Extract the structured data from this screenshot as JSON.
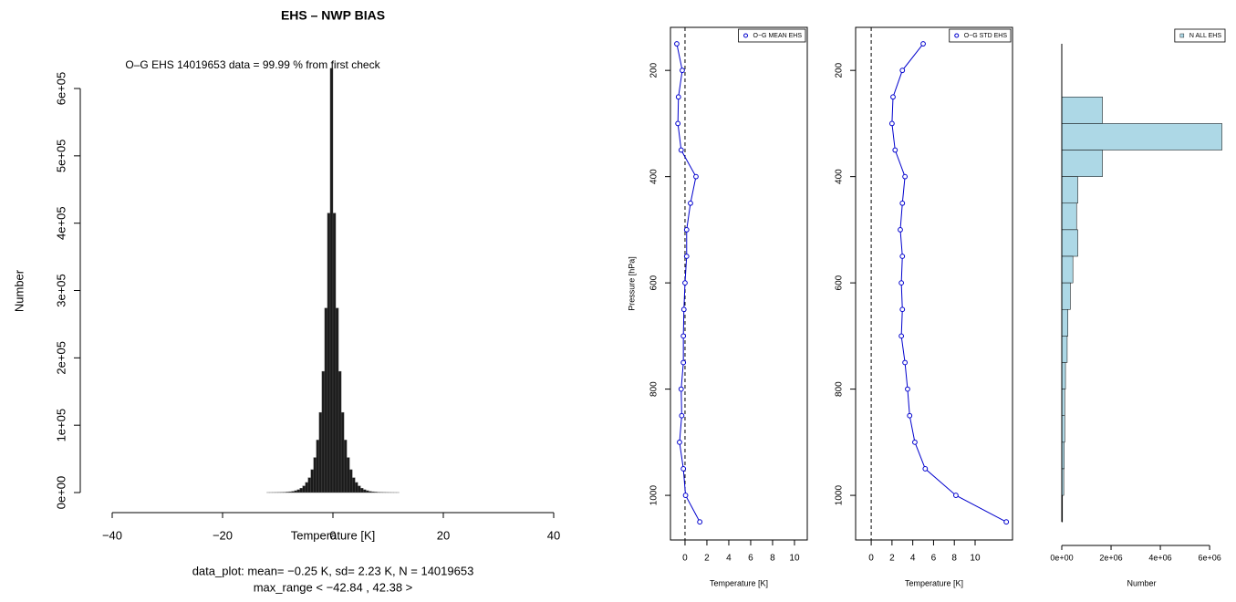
{
  "chart_data": [
    {
      "type": "histogram",
      "orientation": "vertical",
      "title": "EHS – NWP BIAS",
      "annotation": "O–G EHS  14019653 data = 99.99 % from first check",
      "xlabel": "Temperature [K]",
      "ylabel": "Number",
      "caption": [
        "data_plot: mean= −0.25 K, sd= 2.23 K, N = 14019653",
        "max_range < −42.84 , 42.38 >"
      ],
      "bins": [
        -12,
        -11.5,
        -11,
        -10.5,
        -10,
        -9.5,
        -9,
        -8.5,
        -8,
        -7.5,
        -7,
        -6.5,
        -6,
        -5.5,
        -5,
        -4.5,
        -4,
        -3.5,
        -3,
        -2.5,
        -2,
        -1.5,
        -1,
        -0.5,
        0,
        0.5,
        1,
        1.5,
        2,
        2.5,
        3,
        3.5,
        4,
        4.5,
        5,
        5.5,
        6,
        6.5,
        7,
        7.5,
        8,
        8.5,
        9,
        9.5,
        10,
        10.5,
        11,
        11.5,
        12
      ],
      "values": [
        43,
        65,
        100,
        150,
        230,
        340,
        520,
        800,
        1200,
        1800,
        2800,
        4200,
        6400,
        9800,
        15000,
        22000,
        34000,
        52000,
        78000,
        119000,
        180000,
        274000,
        415000,
        630000,
        415000,
        274000,
        180000,
        119000,
        78000,
        52000,
        34000,
        22000,
        15000,
        9800,
        6400,
        4200,
        2800,
        1800,
        1200,
        800,
        520,
        340,
        230,
        150,
        100,
        65,
        43,
        28
      ],
      "color": "#1a1a1a",
      "edgecolor": "#555555",
      "xlim": [
        -46,
        46
      ],
      "xticks": [
        {
          "value": -40,
          "label": "−40"
        },
        {
          "value": -20,
          "label": "−20"
        },
        0,
        20,
        40
      ],
      "ylim": [
        0,
        640000
      ],
      "yticks": [
        {
          "value": 0,
          "label": "0e+00"
        },
        {
          "value": 100000,
          "label": "1e+05"
        },
        {
          "value": 200000,
          "label": "2e+05"
        },
        {
          "value": 300000,
          "label": "3e+05"
        },
        {
          "value": 400000,
          "label": "4e+05"
        },
        {
          "value": 500000,
          "label": "5e+05"
        },
        {
          "value": 600000,
          "label": "6e+05"
        }
      ]
    },
    {
      "type": "line",
      "xlabel": "Temperature [K]",
      "ylabel": "Pressure [hPa]",
      "y": [
        150,
        200,
        250,
        300,
        350,
        400,
        450,
        500,
        550,
        600,
        650,
        700,
        750,
        800,
        850,
        900,
        950,
        1000,
        1050
      ],
      "series": [
        {
          "name": "O−G MEAN EHS",
          "color": "#0000cd",
          "values": [
            -0.75,
            -0.25,
            -0.6,
            -0.65,
            -0.35,
            1.0,
            0.5,
            0.15,
            0.15,
            0,
            -0.1,
            -0.15,
            -0.15,
            -0.35,
            -0.3,
            -0.5,
            -0.15,
            0.05,
            1.35
          ]
        }
      ],
      "vline": 0,
      "legend": "topright",
      "xlim": [
        -1.33,
        11.17
      ],
      "xticks": [
        0,
        2,
        4,
        6,
        8,
        10
      ],
      "ylim": [
        1084,
        119
      ],
      "yticks": [
        200,
        400,
        600,
        800,
        1000
      ]
    },
    {
      "type": "line",
      "xlabel": "Temperature [K]",
      "y": [
        150,
        200,
        250,
        300,
        350,
        400,
        450,
        500,
        550,
        600,
        650,
        700,
        750,
        800,
        850,
        900,
        950,
        1000,
        1050
      ],
      "series": [
        {
          "name": "O−G STD EHS",
          "color": "#0000cd",
          "values": [
            5.0,
            3.0,
            2.1,
            2.0,
            2.3,
            3.25,
            3.0,
            2.8,
            3.0,
            2.9,
            3.0,
            2.9,
            3.25,
            3.5,
            3.7,
            4.2,
            5.2,
            8.15,
            13.0
          ]
        }
      ],
      "vline": 0,
      "legend": "topright",
      "xlim": [
        -1.5,
        13.6
      ],
      "xticks": [
        0,
        2,
        4,
        6,
        8,
        10
      ],
      "ylim": [
        1084,
        119
      ],
      "yticks": [
        200,
        400,
        600,
        800,
        1000
      ]
    },
    {
      "type": "histogram",
      "orientation": "horizontal",
      "xlabel": "Number",
      "bins": [
        250,
        300,
        350,
        400,
        450,
        500,
        550,
        600,
        650,
        700,
        750,
        800,
        850,
        900,
        950,
        1000,
        1050
      ],
      "values": [
        1650000,
        6500000,
        1650000,
        650000,
        600000,
        650000,
        450000,
        350000,
        250000,
        220000,
        150000,
        120000,
        120000,
        100000,
        80000,
        30000
      ],
      "series_name": "N ALL EHS",
      "color": "#add8e6",
      "edgecolor": "#000000",
      "legend": "topright",
      "xlim": [
        0,
        6700000
      ],
      "xticks": [
        {
          "value": 0,
          "label": "0e+00"
        },
        {
          "value": 2000000,
          "label": "2e+06"
        },
        {
          "value": 4000000,
          "label": "4e+06"
        },
        {
          "value": 6000000,
          "label": "6e+06"
        }
      ],
      "ylim": [
        1084,
        119
      ]
    }
  ]
}
